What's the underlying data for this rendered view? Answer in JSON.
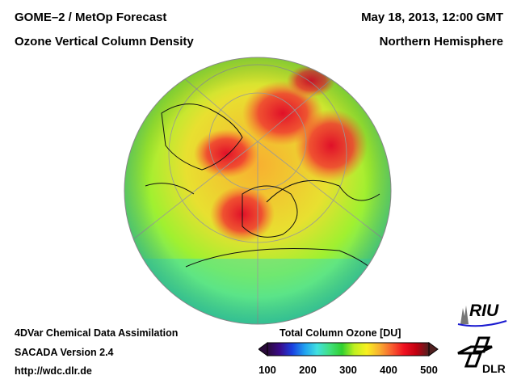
{
  "header": {
    "title_left_1": "GOME–2 / MetOp Forecast",
    "title_left_2": "Ozone Vertical Column Density",
    "title_right_1": "May 18, 2013, 12:00 GMT",
    "title_right_2": "Northern Hemisphere"
  },
  "footer": {
    "line1": "4DVar Chemical Data Assimilation",
    "line2": "SACADA Version 2.4",
    "line3": "http://wdc.dlr.de"
  },
  "colorbar": {
    "title": "Total Column Ozone [DU]",
    "ticks": [
      "100",
      "200",
      "300",
      "400",
      "500"
    ],
    "min": 100,
    "max": 500,
    "colors": [
      "#2a0a3a",
      "#3a0a8a",
      "#1a40e0",
      "#20a0f0",
      "#40e0e0",
      "#40e080",
      "#30d030",
      "#c0f020",
      "#f8f020",
      "#f8b030",
      "#f86030",
      "#f01020",
      "#c00010",
      "#502020"
    ]
  },
  "logos": {
    "riu": "RIU",
    "dlr": "DLR"
  }
}
